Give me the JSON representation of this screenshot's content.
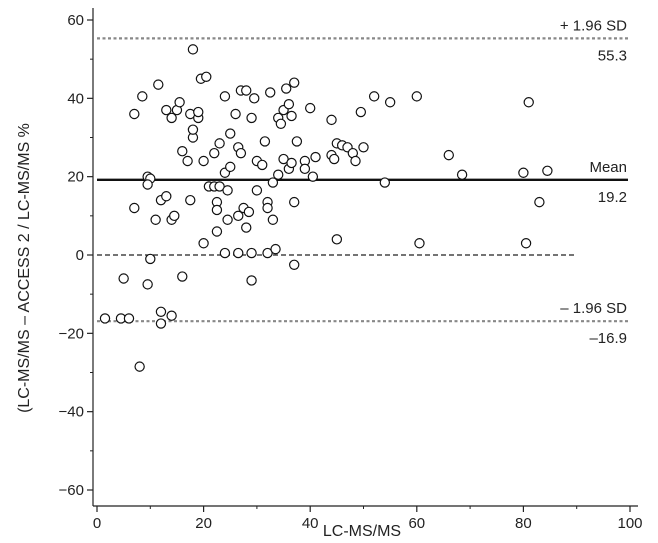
{
  "chart_data": {
    "type": "scatter",
    "title": "",
    "xlabel": "LC-MS/MS",
    "ylabel": "(LC-MS/MS – ACCESS 2 / LC-MS/MS %",
    "xlim": [
      0,
      100
    ],
    "ylim": [
      -65,
      65
    ],
    "x_ticks": [
      0,
      20,
      40,
      60,
      80,
      100
    ],
    "y_ticks": [
      60,
      40,
      20,
      0,
      -20,
      -40,
      -60
    ],
    "grid": false,
    "legend": "none",
    "reference_lines": [
      {
        "name": "upper",
        "label": "+ 1.96 SD",
        "value_label": "55.3",
        "y": 55.3,
        "style": "dotted",
        "color": "#888888"
      },
      {
        "name": "mean",
        "label": "Mean",
        "value_label": "19.2",
        "y": 19.2,
        "style": "solid",
        "color": "#111111"
      },
      {
        "name": "zero",
        "label": "",
        "value_label": "",
        "y": 0,
        "x_end": 90,
        "style": "dashed",
        "color": "#222222"
      },
      {
        "name": "lower",
        "label": "– 1.96 SD",
        "value_label": "–16.9",
        "y": -16.9,
        "style": "dotted",
        "color": "#888888"
      }
    ],
    "points": [
      [
        1.5,
        -16.2
      ],
      [
        4.5,
        -16.2
      ],
      [
        6,
        -16.2
      ],
      [
        8,
        -28.5
      ],
      [
        5,
        -6
      ],
      [
        7,
        12
      ],
      [
        7,
        36
      ],
      [
        8.5,
        40.5
      ],
      [
        9.5,
        20
      ],
      [
        10,
        19.5
      ],
      [
        9.5,
        18
      ],
      [
        10,
        -1
      ],
      [
        9.5,
        -7.5
      ],
      [
        11,
        9
      ],
      [
        11.5,
        43.5
      ],
      [
        12,
        -14.5
      ],
      [
        12,
        -17.5
      ],
      [
        12,
        14
      ],
      [
        13,
        15
      ],
      [
        13,
        37
      ],
      [
        14,
        35
      ],
      [
        14,
        9
      ],
      [
        14.5,
        10
      ],
      [
        14,
        -15.5
      ],
      [
        15,
        37
      ],
      [
        15.5,
        39
      ],
      [
        16,
        26.5
      ],
      [
        16,
        -5.5
      ],
      [
        17,
        24
      ],
      [
        17.5,
        36
      ],
      [
        17.5,
        14
      ],
      [
        18,
        30
      ],
      [
        18,
        32
      ],
      [
        18,
        52.5
      ],
      [
        19,
        35
      ],
      [
        19,
        36.5
      ],
      [
        19.5,
        45
      ],
      [
        20,
        24
      ],
      [
        20,
        3
      ],
      [
        20.5,
        45.5
      ],
      [
        21,
        17.5
      ],
      [
        22,
        17.5
      ],
      [
        22,
        26
      ],
      [
        22.5,
        13.5
      ],
      [
        22.5,
        11.5
      ],
      [
        22.5,
        6
      ],
      [
        23,
        17.5
      ],
      [
        23,
        28.5
      ],
      [
        24,
        21
      ],
      [
        24,
        40.5
      ],
      [
        24,
        0.5
      ],
      [
        24.5,
        16.5
      ],
      [
        24.5,
        9
      ],
      [
        25,
        31
      ],
      [
        25,
        22.5
      ],
      [
        26,
        36
      ],
      [
        26.5,
        27.5
      ],
      [
        26.5,
        10
      ],
      [
        26.5,
        0.5
      ],
      [
        27,
        26
      ],
      [
        27,
        42
      ],
      [
        27.5,
        12
      ],
      [
        28,
        7
      ],
      [
        28,
        42
      ],
      [
        28.5,
        11
      ],
      [
        29,
        0.5
      ],
      [
        29,
        -6.5
      ],
      [
        29,
        35
      ],
      [
        29.5,
        40
      ],
      [
        30,
        24
      ],
      [
        30,
        16.5
      ],
      [
        31,
        23
      ],
      [
        31.5,
        29
      ],
      [
        32,
        13.5
      ],
      [
        32,
        12
      ],
      [
        32,
        0.5
      ],
      [
        32.5,
        41.5
      ],
      [
        33,
        9
      ],
      [
        33,
        18.5
      ],
      [
        33.5,
        1.5
      ],
      [
        34,
        20.5
      ],
      [
        34,
        35
      ],
      [
        34.5,
        33.5
      ],
      [
        35,
        24.5
      ],
      [
        35,
        37
      ],
      [
        35.5,
        42.5
      ],
      [
        36,
        38.5
      ],
      [
        36,
        22
      ],
      [
        36.5,
        23.5
      ],
      [
        36.5,
        35.5
      ],
      [
        37,
        -2.5
      ],
      [
        37,
        13.5
      ],
      [
        37,
        44
      ],
      [
        37.5,
        29
      ],
      [
        39,
        24
      ],
      [
        39,
        22
      ],
      [
        40,
        37.5
      ],
      [
        40.5,
        20
      ],
      [
        41,
        25
      ],
      [
        44,
        34.5
      ],
      [
        44,
        25.5
      ],
      [
        44.5,
        24.5
      ],
      [
        45,
        4
      ],
      [
        45,
        28.5
      ],
      [
        46,
        28
      ],
      [
        47,
        27.5
      ],
      [
        48,
        26
      ],
      [
        48.5,
        24
      ],
      [
        49.5,
        36.5
      ],
      [
        50,
        27.5
      ],
      [
        52,
        40.5
      ],
      [
        54,
        18.5
      ],
      [
        55,
        39
      ],
      [
        60,
        40.5
      ],
      [
        60.5,
        3
      ],
      [
        66,
        25.5
      ],
      [
        68.5,
        20.5
      ],
      [
        80,
        21
      ],
      [
        80.5,
        3
      ],
      [
        81,
        39
      ],
      [
        83,
        13.5
      ],
      [
        84.5,
        21.5
      ]
    ]
  }
}
